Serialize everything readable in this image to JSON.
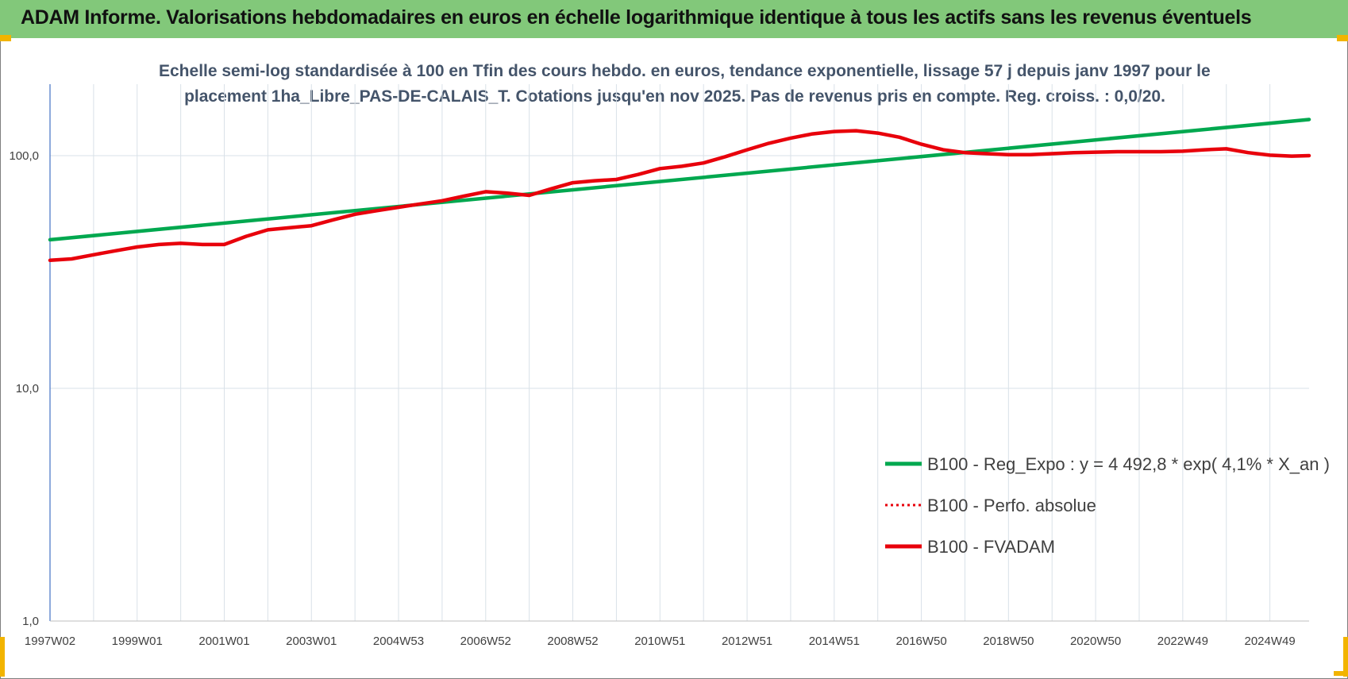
{
  "banner": {
    "title": "ADAM Informe. Valorisations hebdomadaires en euros en échelle logarithmique identique à tous les actifs sans les revenus éventuels"
  },
  "colors": {
    "banner": "#82c87a",
    "reg_line": "#00a84f",
    "fvadam_line": "#e8000b",
    "grid": "#d9e1e8",
    "axis": "#4472c4"
  },
  "chart_data": {
    "type": "line",
    "title_line1": "Echelle semi-log standardisée à 100 en Tfin des cours hebdo. en euros, tendance exponentielle, lissage 57 j depuis janv 1997 pour le",
    "title_line2": "placement 1ha_Libre_PAS-DE-CALAIS_T. Cotations jusqu'en nov 2025. Pas de revenus pris en compte. Reg. croiss. : 0,0/20.",
    "y_scale": "log",
    "ylim": [
      1,
      200
    ],
    "y_ticks": [
      {
        "value": 1,
        "label": "1,0"
      },
      {
        "value": 10,
        "label": "10,0"
      },
      {
        "value": 100,
        "label": "100,0"
      }
    ],
    "x_range": [
      1997.0,
      2025.9
    ],
    "x_ticks": [
      {
        "x": 1997.0,
        "label": "1997W02"
      },
      {
        "x": 1999.0,
        "label": "1999W01"
      },
      {
        "x": 2001.0,
        "label": "2001W01"
      },
      {
        "x": 2003.0,
        "label": "2003W01"
      },
      {
        "x": 2005.0,
        "label": "2004W53"
      },
      {
        "x": 2007.0,
        "label": "2006W52"
      },
      {
        "x": 2009.0,
        "label": "2008W52"
      },
      {
        "x": 2011.0,
        "label": "2010W51"
      },
      {
        "x": 2013.0,
        "label": "2012W51"
      },
      {
        "x": 2015.0,
        "label": "2014W51"
      },
      {
        "x": 2017.0,
        "label": "2016W50"
      },
      {
        "x": 2019.0,
        "label": "2018W50"
      },
      {
        "x": 2021.0,
        "label": "2020W50"
      },
      {
        "x": 2023.0,
        "label": "2022W49"
      },
      {
        "x": 2025.0,
        "label": "2024W49"
      }
    ],
    "grid": true,
    "legend_position": "bottom-right",
    "series": [
      {
        "name": "B100 - Reg_Expo : y = 4 492,8 * exp( 4,1% *  X_an )",
        "color": "#00a84f",
        "style": "solid",
        "points": [
          [
            1997.0,
            43.5
          ],
          [
            2025.9,
            143
          ]
        ]
      },
      {
        "name": "B100 - Perfo. absolue",
        "color": "#e8000b",
        "style": "dotted",
        "points": []
      },
      {
        "name": "B100 - FVADAM",
        "color": "#e8000b",
        "style": "solid",
        "points": [
          [
            1997.0,
            35.5
          ],
          [
            1997.5,
            36
          ],
          [
            1998.0,
            37.5
          ],
          [
            1998.5,
            39
          ],
          [
            1999.0,
            40.5
          ],
          [
            1999.5,
            41.5
          ],
          [
            2000.0,
            42
          ],
          [
            2000.5,
            41.5
          ],
          [
            2001.0,
            41.5
          ],
          [
            2001.5,
            45
          ],
          [
            2002.0,
            48
          ],
          [
            2002.5,
            49
          ],
          [
            2003.0,
            50
          ],
          [
            2003.5,
            53
          ],
          [
            2004.0,
            56
          ],
          [
            2004.5,
            58
          ],
          [
            2005.0,
            60
          ],
          [
            2005.5,
            62
          ],
          [
            2006.0,
            64
          ],
          [
            2006.5,
            67
          ],
          [
            2007.0,
            70
          ],
          [
            2007.5,
            69
          ],
          [
            2008.0,
            67.5
          ],
          [
            2008.5,
            72
          ],
          [
            2009.0,
            76.5
          ],
          [
            2009.5,
            78
          ],
          [
            2010.0,
            79
          ],
          [
            2010.5,
            83
          ],
          [
            2011.0,
            88
          ],
          [
            2011.5,
            90
          ],
          [
            2012.0,
            93
          ],
          [
            2012.5,
            99
          ],
          [
            2013.0,
            106
          ],
          [
            2013.5,
            113
          ],
          [
            2014.0,
            119
          ],
          [
            2014.5,
            124
          ],
          [
            2015.0,
            127
          ],
          [
            2015.5,
            128
          ],
          [
            2016.0,
            125
          ],
          [
            2016.5,
            120
          ],
          [
            2017.0,
            112
          ],
          [
            2017.5,
            106
          ],
          [
            2018.0,
            103
          ],
          [
            2018.5,
            102
          ],
          [
            2019.0,
            101
          ],
          [
            2019.5,
            101
          ],
          [
            2020.0,
            102
          ],
          [
            2020.5,
            103
          ],
          [
            2021.0,
            103.5
          ],
          [
            2021.5,
            104
          ],
          [
            2022.0,
            104
          ],
          [
            2022.5,
            104
          ],
          [
            2023.0,
            104.5
          ],
          [
            2023.5,
            106
          ],
          [
            2024.0,
            107
          ],
          [
            2024.5,
            103
          ],
          [
            2025.0,
            100.5
          ],
          [
            2025.5,
            99.5
          ],
          [
            2025.9,
            100
          ]
        ]
      }
    ]
  }
}
